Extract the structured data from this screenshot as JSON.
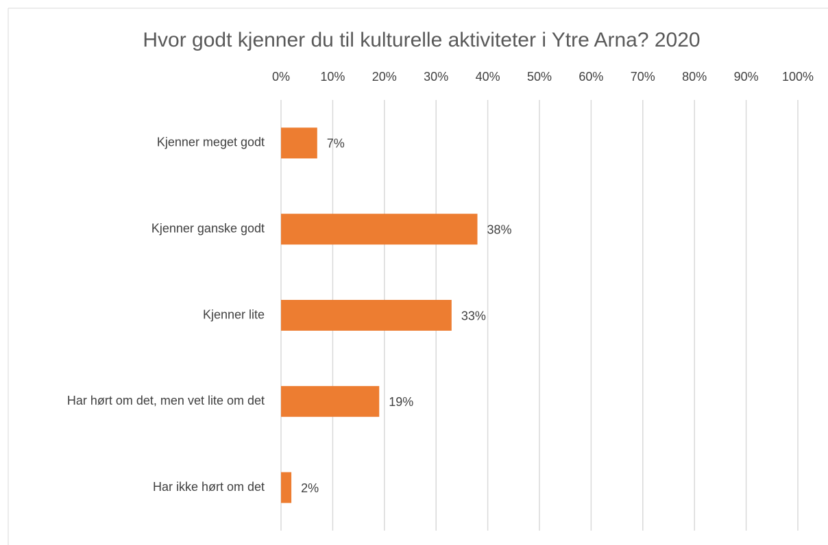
{
  "chart_data": {
    "type": "bar",
    "orientation": "horizontal",
    "title": "Hvor godt kjenner du til kulturelle aktiviteter i Ytre Arna? 2020",
    "categories": [
      "Kjenner meget godt",
      "Kjenner ganske godt",
      "Kjenner lite",
      "Har hørt om det, men vet lite om det",
      "Har ikke hørt om det"
    ],
    "values": [
      7,
      38,
      33,
      19,
      2
    ],
    "value_labels": [
      "7%",
      "38%",
      "33%",
      "19%",
      "2%"
    ],
    "color": "#ed7d31",
    "xlim": [
      0,
      100
    ],
    "xticks": [
      {
        "value": 0,
        "label": "0%"
      },
      {
        "value": 10,
        "label": "10%"
      },
      {
        "value": 20,
        "label": "20%"
      },
      {
        "value": 30,
        "label": "30%"
      },
      {
        "value": 40,
        "label": "40%"
      },
      {
        "value": 50,
        "label": "50%"
      },
      {
        "value": 60,
        "label": "60%"
      },
      {
        "value": 70,
        "label": "70%"
      },
      {
        "value": 80,
        "label": "80%"
      },
      {
        "value": 90,
        "label": "90%"
      },
      {
        "value": 100,
        "label": "100%"
      }
    ],
    "grid": true
  }
}
